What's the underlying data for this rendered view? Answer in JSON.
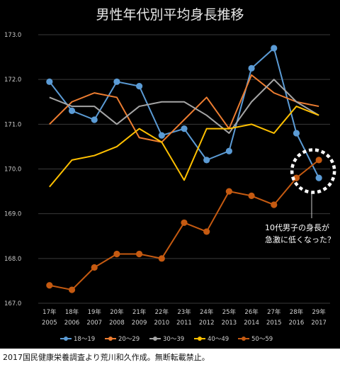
{
  "chart_data": {
    "type": "line",
    "title": "男性年代別平均身長推移",
    "categories": [
      [
        "17年",
        "2005"
      ],
      [
        "18年",
        "2006"
      ],
      [
        "19年",
        "2007"
      ],
      [
        "20年",
        "2008"
      ],
      [
        "21年",
        "2009"
      ],
      [
        "22年",
        "2010"
      ],
      [
        "23年",
        "2011"
      ],
      [
        "24年",
        "2012"
      ],
      [
        "25年",
        "2013"
      ],
      [
        "26年",
        "2014"
      ],
      [
        "27年",
        "2015"
      ],
      [
        "28年",
        "2016"
      ],
      [
        "29年",
        "2017"
      ]
    ],
    "ylim": [
      167.0,
      173.0
    ],
    "yticks": [
      "167.0",
      "168.0",
      "169.0",
      "170.0",
      "171.0",
      "172.0",
      "173.0"
    ],
    "grid": true,
    "legend_position": "bottom",
    "series": [
      {
        "name": "18〜19",
        "color": "#5b9bd5",
        "markers": true,
        "values": [
          171.95,
          171.3,
          171.1,
          171.95,
          171.85,
          170.75,
          170.9,
          170.2,
          170.4,
          172.25,
          172.7,
          170.8,
          169.8
        ]
      },
      {
        "name": "20〜29",
        "color": "#ed7d31",
        "markers": false,
        "values": [
          171.0,
          171.5,
          171.7,
          171.6,
          170.7,
          170.6,
          171.1,
          171.6,
          170.9,
          172.1,
          171.7,
          171.5,
          171.4
        ]
      },
      {
        "name": "30〜39",
        "color": "#a5a5a5",
        "markers": false,
        "values": [
          171.6,
          171.4,
          171.4,
          171.0,
          171.4,
          171.5,
          171.5,
          171.2,
          170.8,
          171.5,
          172.0,
          171.5,
          171.2
        ]
      },
      {
        "name": "40〜49",
        "color": "#ffc000",
        "markers": false,
        "values": [
          169.6,
          170.2,
          170.3,
          170.5,
          170.9,
          170.6,
          169.75,
          170.9,
          170.9,
          171.0,
          170.8,
          171.4,
          171.2
        ]
      },
      {
        "name": "50〜59",
        "color": "#c55a11",
        "markers": true,
        "values": [
          167.4,
          167.3,
          167.8,
          168.1,
          168.1,
          168.0,
          168.8,
          168.6,
          169.5,
          169.4,
          169.2,
          169.8,
          170.2
        ]
      }
    ],
    "annotation": {
      "lines": [
        "10代男子の身長が",
        "急激に低くなった？"
      ],
      "circle_color": "#ffffff"
    }
  },
  "footer": {
    "text": "2017国民健康栄養調査より荒川和久作成。無断転載禁止。"
  }
}
